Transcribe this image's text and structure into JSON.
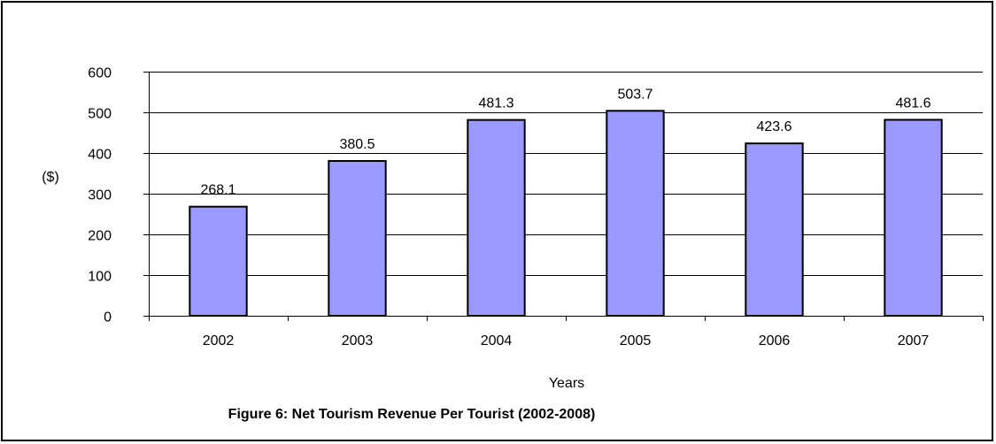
{
  "chart_data": {
    "type": "bar",
    "categories": [
      "2002",
      "2003",
      "2004",
      "2005",
      "2006",
      "2007"
    ],
    "values": [
      268.1,
      380.5,
      481.3,
      503.7,
      423.6,
      481.6
    ],
    "data_labels": [
      "268.1",
      "380.5",
      "481.3",
      "503.7",
      "423.6",
      "481.6"
    ],
    "xlabel": "Years",
    "ylabel": "($)",
    "ylim": [
      0,
      600
    ],
    "yticks": [
      0,
      100,
      200,
      300,
      400,
      500,
      600
    ],
    "ytick_labels": [
      "0",
      "100",
      "200",
      "300",
      "400",
      "500",
      "600"
    ],
    "grid": true,
    "legend": "none",
    "bar_color": "#9999FF",
    "bar_border_color": "#000000"
  },
  "caption": "Figure 6: Net Tourism Revenue Per Tourist (2002-2008)"
}
